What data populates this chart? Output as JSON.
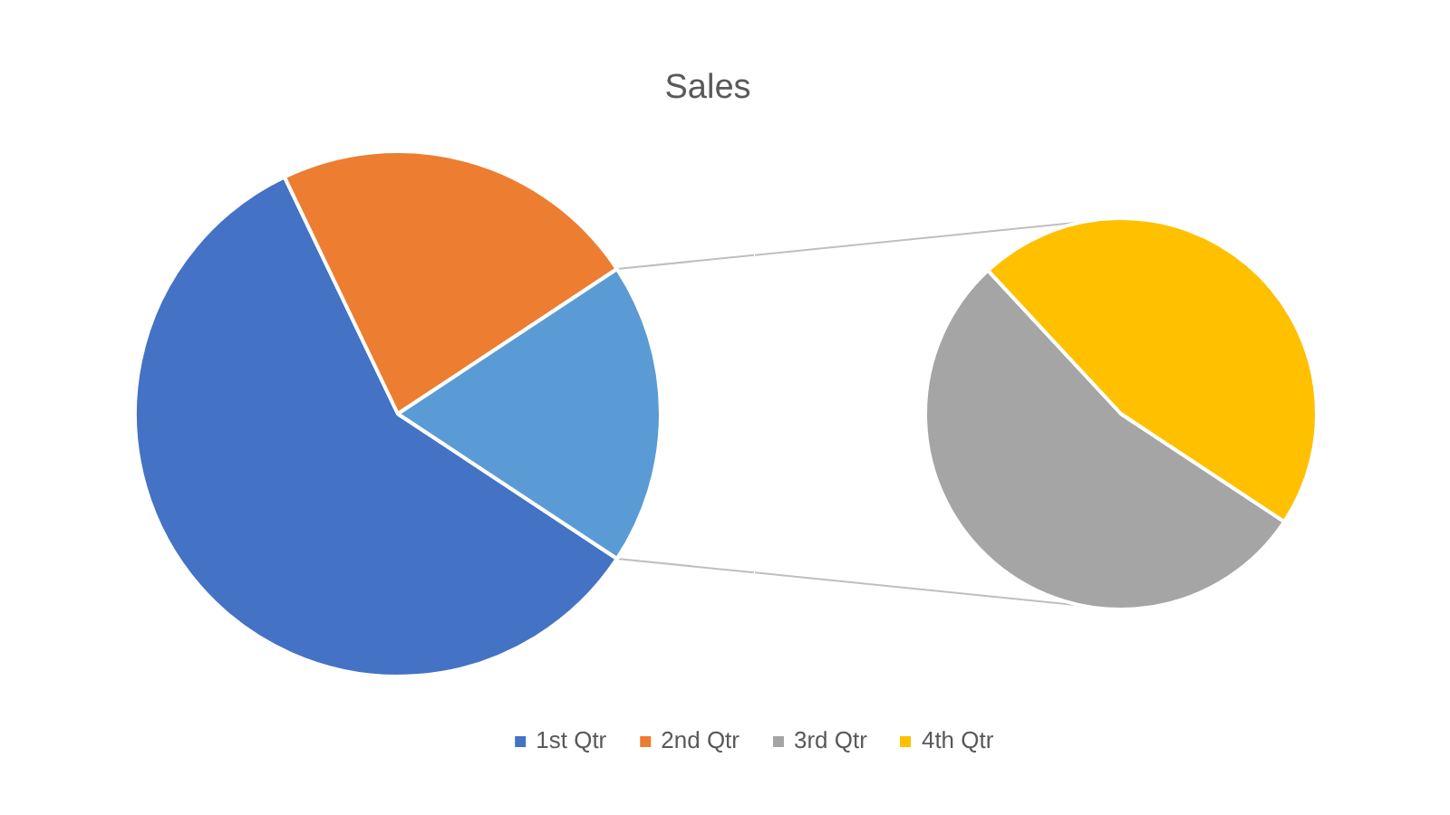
{
  "chart_data": [
    {
      "type": "pie",
      "title": "Sales",
      "categories": [
        "1st Qtr",
        "2nd Qtr",
        null
      ],
      "values": [
        58.6,
        22.8,
        18.6
      ],
      "colors": [
        "#4472c4",
        "#ed7d31",
        "#5b9bd5"
      ],
      "legend": "bottom"
    },
    {
      "type": "pie",
      "categories": [
        "3rd Qtr",
        "4th Qtr"
      ],
      "values": [
        53.8,
        46.2
      ],
      "colors": [
        "#a5a5a5",
        "#ffc000"
      ],
      "legend": "bottom"
    }
  ]
}
